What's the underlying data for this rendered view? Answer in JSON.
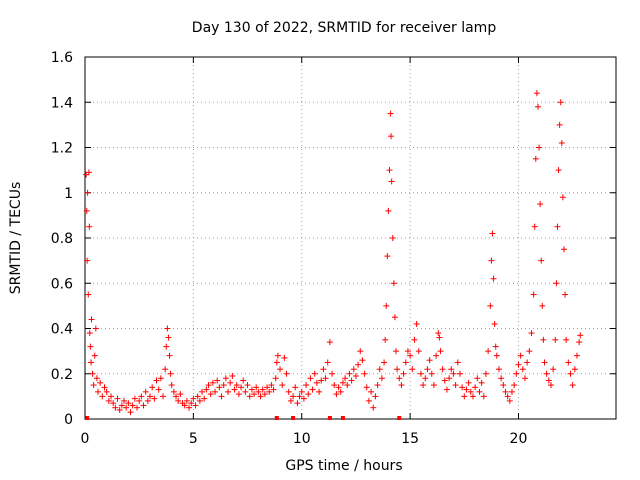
{
  "chart_data": {
    "type": "scatter",
    "title": "Day 130 of 2022, SRMTID for receiver lamp",
    "xlabel": "GPS time / hours",
    "ylabel": "SRMTID / TECUs",
    "xlim": [
      0,
      24.5
    ],
    "ylim": [
      0,
      1.6
    ],
    "xticks": [
      0,
      5,
      10,
      15,
      20
    ],
    "yticks": [
      0,
      0.2,
      0.4,
      0.6,
      0.8,
      1,
      1.2,
      1.4,
      1.6
    ],
    "xtick_labels": [
      "0",
      "5",
      "10",
      "15",
      "20"
    ],
    "ytick_labels": [
      "0",
      "0.2",
      "0.4",
      "0.6",
      "0.8",
      "1",
      "1.2",
      "1.4",
      "1.6"
    ],
    "grid": true,
    "series_color": "#ff0000",
    "marker": "+",
    "series": [
      {
        "name": "SRMTID",
        "points": [
          [
            0.05,
            1.08
          ],
          [
            0.08,
            0.92
          ],
          [
            0.1,
            0.7
          ],
          [
            0.12,
            1.0
          ],
          [
            0.15,
            0.55
          ],
          [
            0.18,
            1.09
          ],
          [
            0.2,
            0.85
          ],
          [
            0.22,
            0.38
          ],
          [
            0.25,
            0.32
          ],
          [
            0.28,
            0.25
          ],
          [
            0.3,
            0.44
          ],
          [
            0.35,
            0.2
          ],
          [
            0.4,
            0.15
          ],
          [
            0.45,
            0.28
          ],
          [
            0.5,
            0.4
          ],
          [
            0.55,
            0.18
          ],
          [
            0.6,
            0.12
          ],
          [
            0.7,
            0.16
          ],
          [
            0.8,
            0.1
          ],
          [
            0.9,
            0.14
          ],
          [
            1.0,
            0.12
          ],
          [
            1.1,
            0.08
          ],
          [
            1.2,
            0.1
          ],
          [
            1.3,
            0.07
          ],
          [
            1.4,
            0.05
          ],
          [
            1.5,
            0.09
          ],
          [
            1.6,
            0.04
          ],
          [
            1.7,
            0.06
          ],
          [
            1.8,
            0.08
          ],
          [
            1.9,
            0.05
          ],
          [
            2.0,
            0.07
          ],
          [
            2.1,
            0.03
          ],
          [
            2.2,
            0.06
          ],
          [
            2.3,
            0.09
          ],
          [
            2.4,
            0.05
          ],
          [
            2.5,
            0.08
          ],
          [
            2.6,
            0.1
          ],
          [
            2.7,
            0.06
          ],
          [
            2.8,
            0.12
          ],
          [
            2.9,
            0.08
          ],
          [
            3.0,
            0.1
          ],
          [
            3.1,
            0.14
          ],
          [
            3.2,
            0.09
          ],
          [
            3.3,
            0.17
          ],
          [
            3.4,
            0.13
          ],
          [
            3.5,
            0.18
          ],
          [
            3.6,
            0.1
          ],
          [
            3.7,
            0.22
          ],
          [
            3.75,
            0.32
          ],
          [
            3.8,
            0.4
          ],
          [
            3.85,
            0.36
          ],
          [
            3.9,
            0.28
          ],
          [
            3.95,
            0.2
          ],
          [
            4.0,
            0.15
          ],
          [
            4.1,
            0.12
          ],
          [
            4.2,
            0.1
          ],
          [
            4.3,
            0.08
          ],
          [
            4.4,
            0.11
          ],
          [
            4.5,
            0.07
          ],
          [
            4.6,
            0.06
          ],
          [
            4.7,
            0.08
          ],
          [
            4.8,
            0.05
          ],
          [
            4.9,
            0.07
          ],
          [
            5.0,
            0.09
          ],
          [
            5.1,
            0.06
          ],
          [
            5.2,
            0.1
          ],
          [
            5.3,
            0.08
          ],
          [
            5.4,
            0.12
          ],
          [
            5.5,
            0.09
          ],
          [
            5.6,
            0.13
          ],
          [
            5.7,
            0.15
          ],
          [
            5.8,
            0.11
          ],
          [
            5.9,
            0.16
          ],
          [
            6.0,
            0.12
          ],
          [
            6.1,
            0.17
          ],
          [
            6.2,
            0.14
          ],
          [
            6.3,
            0.1
          ],
          [
            6.4,
            0.15
          ],
          [
            6.5,
            0.18
          ],
          [
            6.6,
            0.12
          ],
          [
            6.7,
            0.16
          ],
          [
            6.8,
            0.19
          ],
          [
            6.9,
            0.13
          ],
          [
            7.0,
            0.15
          ],
          [
            7.1,
            0.11
          ],
          [
            7.2,
            0.14
          ],
          [
            7.3,
            0.17
          ],
          [
            7.4,
            0.12
          ],
          [
            7.5,
            0.15
          ],
          [
            7.6,
            0.1
          ],
          [
            7.7,
            0.13
          ],
          [
            7.8,
            0.11
          ],
          [
            7.9,
            0.14
          ],
          [
            8.0,
            0.12
          ],
          [
            8.1,
            0.1
          ],
          [
            8.2,
            0.13
          ],
          [
            8.3,
            0.11
          ],
          [
            8.4,
            0.14
          ],
          [
            8.5,
            0.12
          ],
          [
            8.6,
            0.15
          ],
          [
            8.7,
            0.13
          ],
          [
            8.8,
            0.18
          ],
          [
            8.85,
            0.25
          ],
          [
            8.9,
            0.28
          ],
          [
            9.0,
            0.22
          ],
          [
            9.1,
            0.15
          ],
          [
            9.2,
            0.27
          ],
          [
            9.3,
            0.2
          ],
          [
            9.4,
            0.12
          ],
          [
            9.5,
            0.08
          ],
          [
            9.6,
            0.1
          ],
          [
            9.7,
            0.14
          ],
          [
            9.8,
            0.07
          ],
          [
            9.9,
            0.1
          ],
          [
            10.0,
            0.12
          ],
          [
            10.1,
            0.09
          ],
          [
            10.2,
            0.15
          ],
          [
            10.3,
            0.11
          ],
          [
            10.4,
            0.18
          ],
          [
            10.5,
            0.13
          ],
          [
            10.6,
            0.2
          ],
          [
            10.7,
            0.16
          ],
          [
            10.8,
            0.12
          ],
          [
            10.9,
            0.17
          ],
          [
            11.0,
            0.22
          ],
          [
            11.1,
            0.18
          ],
          [
            11.2,
            0.25
          ],
          [
            11.3,
            0.34
          ],
          [
            11.4,
            0.2
          ],
          [
            11.5,
            0.15
          ],
          [
            11.6,
            0.11
          ],
          [
            11.7,
            0.14
          ],
          [
            11.8,
            0.12
          ],
          [
            11.9,
            0.16
          ],
          [
            12.0,
            0.18
          ],
          [
            12.1,
            0.15
          ],
          [
            12.2,
            0.2
          ],
          [
            12.3,
            0.17
          ],
          [
            12.4,
            0.22
          ],
          [
            12.5,
            0.19
          ],
          [
            12.6,
            0.24
          ],
          [
            12.7,
            0.3
          ],
          [
            12.8,
            0.26
          ],
          [
            12.9,
            0.2
          ],
          [
            13.0,
            0.14
          ],
          [
            13.1,
            0.08
          ],
          [
            13.2,
            0.12
          ],
          [
            13.3,
            0.05
          ],
          [
            13.4,
            0.1
          ],
          [
            13.5,
            0.15
          ],
          [
            13.6,
            0.22
          ],
          [
            13.7,
            0.18
          ],
          [
            13.8,
            0.25
          ],
          [
            13.85,
            0.35
          ],
          [
            13.9,
            0.5
          ],
          [
            13.95,
            0.72
          ],
          [
            14.0,
            0.92
          ],
          [
            14.05,
            1.1
          ],
          [
            14.1,
            1.35
          ],
          [
            14.12,
            1.25
          ],
          [
            14.15,
            1.05
          ],
          [
            14.2,
            0.8
          ],
          [
            14.25,
            0.6
          ],
          [
            14.3,
            0.45
          ],
          [
            14.35,
            0.3
          ],
          [
            14.4,
            0.22
          ],
          [
            14.5,
            0.18
          ],
          [
            14.6,
            0.15
          ],
          [
            14.7,
            0.2
          ],
          [
            14.8,
            0.25
          ],
          [
            14.9,
            0.3
          ],
          [
            15.0,
            0.28
          ],
          [
            15.1,
            0.22
          ],
          [
            15.2,
            0.35
          ],
          [
            15.3,
            0.42
          ],
          [
            15.4,
            0.3
          ],
          [
            15.5,
            0.2
          ],
          [
            15.6,
            0.15
          ],
          [
            15.7,
            0.18
          ],
          [
            15.8,
            0.22
          ],
          [
            15.9,
            0.26
          ],
          [
            16.0,
            0.2
          ],
          [
            16.1,
            0.15
          ],
          [
            16.2,
            0.28
          ],
          [
            16.3,
            0.38
          ],
          [
            16.35,
            0.36
          ],
          [
            16.4,
            0.3
          ],
          [
            16.5,
            0.22
          ],
          [
            16.6,
            0.17
          ],
          [
            16.7,
            0.13
          ],
          [
            16.8,
            0.18
          ],
          [
            16.9,
            0.22
          ],
          [
            17.0,
            0.2
          ],
          [
            17.1,
            0.15
          ],
          [
            17.2,
            0.25
          ],
          [
            17.3,
            0.2
          ],
          [
            17.4,
            0.14
          ],
          [
            17.5,
            0.1
          ],
          [
            17.6,
            0.13
          ],
          [
            17.7,
            0.16
          ],
          [
            17.8,
            0.12
          ],
          [
            17.9,
            0.1
          ],
          [
            18.0,
            0.14
          ],
          [
            18.1,
            0.18
          ],
          [
            18.2,
            0.12
          ],
          [
            18.3,
            0.16
          ],
          [
            18.4,
            0.1
          ],
          [
            18.5,
            0.2
          ],
          [
            18.6,
            0.3
          ],
          [
            18.7,
            0.5
          ],
          [
            18.75,
            0.7
          ],
          [
            18.8,
            0.82
          ],
          [
            18.85,
            0.62
          ],
          [
            18.9,
            0.42
          ],
          [
            18.95,
            0.32
          ],
          [
            19.0,
            0.28
          ],
          [
            19.1,
            0.22
          ],
          [
            19.2,
            0.18
          ],
          [
            19.3,
            0.15
          ],
          [
            19.4,
            0.12
          ],
          [
            19.5,
            0.1
          ],
          [
            19.6,
            0.08
          ],
          [
            19.7,
            0.12
          ],
          [
            19.8,
            0.15
          ],
          [
            19.9,
            0.2
          ],
          [
            20.0,
            0.24
          ],
          [
            20.1,
            0.28
          ],
          [
            20.2,
            0.22
          ],
          [
            20.3,
            0.18
          ],
          [
            20.4,
            0.25
          ],
          [
            20.5,
            0.3
          ],
          [
            20.6,
            0.38
          ],
          [
            20.7,
            0.55
          ],
          [
            20.75,
            0.85
          ],
          [
            20.8,
            1.15
          ],
          [
            20.85,
            1.44
          ],
          [
            20.9,
            1.38
          ],
          [
            20.95,
            1.2
          ],
          [
            21.0,
            0.95
          ],
          [
            21.05,
            0.7
          ],
          [
            21.1,
            0.5
          ],
          [
            21.15,
            0.35
          ],
          [
            21.2,
            0.25
          ],
          [
            21.3,
            0.2
          ],
          [
            21.4,
            0.17
          ],
          [
            21.5,
            0.15
          ],
          [
            21.6,
            0.22
          ],
          [
            21.7,
            0.35
          ],
          [
            21.75,
            0.6
          ],
          [
            21.8,
            0.85
          ],
          [
            21.85,
            1.1
          ],
          [
            21.9,
            1.3
          ],
          [
            21.95,
            1.4
          ],
          [
            22.0,
            1.22
          ],
          [
            22.05,
            0.98
          ],
          [
            22.1,
            0.75
          ],
          [
            22.15,
            0.55
          ],
          [
            22.2,
            0.35
          ],
          [
            22.3,
            0.25
          ],
          [
            22.4,
            0.2
          ],
          [
            22.5,
            0.15
          ],
          [
            22.6,
            0.22
          ],
          [
            22.7,
            0.28
          ],
          [
            22.8,
            0.34
          ],
          [
            22.85,
            0.37
          ]
        ]
      }
    ],
    "zero_markers_x": [
      0.1,
      8.85,
      9.6,
      11.3,
      11.9,
      14.5
    ]
  }
}
